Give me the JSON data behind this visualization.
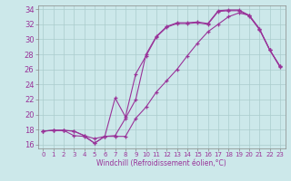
{
  "xlabel": "Windchill (Refroidissement éolien,°C)",
  "bg_color": "#cce8ea",
  "line_color": "#993399",
  "grid_color": "#aacccc",
  "xlim": [
    -0.5,
    23.5
  ],
  "ylim": [
    15.5,
    34.5
  ],
  "yticks": [
    16,
    18,
    20,
    22,
    24,
    26,
    28,
    30,
    32,
    34
  ],
  "xticks": [
    0,
    1,
    2,
    3,
    4,
    5,
    6,
    7,
    8,
    9,
    10,
    11,
    12,
    13,
    14,
    15,
    16,
    17,
    18,
    19,
    20,
    21,
    22,
    23
  ],
  "line1_x": [
    0,
    1,
    2,
    3,
    4,
    5,
    6,
    7,
    8,
    9,
    10,
    11,
    12,
    13,
    14,
    15,
    16,
    17,
    18,
    19,
    20,
    21,
    22,
    23
  ],
  "line1_y": [
    17.8,
    17.9,
    17.9,
    17.8,
    17.2,
    16.8,
    17.1,
    22.2,
    19.7,
    25.4,
    27.8,
    30.3,
    31.6,
    32.1,
    32.1,
    32.2,
    32.0,
    33.7,
    33.8,
    33.8,
    33.1,
    31.3,
    28.6,
    26.3
  ],
  "line2_x": [
    0,
    1,
    2,
    3,
    4,
    5,
    6,
    7,
    8,
    9,
    10,
    11,
    12,
    13,
    14,
    15,
    16,
    17,
    18,
    19,
    20,
    21,
    22,
    23
  ],
  "line2_y": [
    17.8,
    17.9,
    17.9,
    17.8,
    17.2,
    16.2,
    17.1,
    17.2,
    19.5,
    22.0,
    28.0,
    30.4,
    31.7,
    32.2,
    32.2,
    32.3,
    32.1,
    33.8,
    33.9,
    33.9,
    33.2,
    31.4,
    28.6,
    26.4
  ],
  "line3_x": [
    0,
    1,
    2,
    3,
    4,
    5,
    6,
    7,
    8,
    9,
    10,
    11,
    12,
    13,
    14,
    15,
    16,
    17,
    18,
    19,
    20,
    21,
    22,
    23
  ],
  "line3_y": [
    17.8,
    17.9,
    17.9,
    17.2,
    17.1,
    16.2,
    17.1,
    17.1,
    17.1,
    19.5,
    21.0,
    23.0,
    24.5,
    26.0,
    27.8,
    29.5,
    31.0,
    32.0,
    33.0,
    33.5,
    33.2,
    31.4,
    28.6,
    26.4
  ]
}
